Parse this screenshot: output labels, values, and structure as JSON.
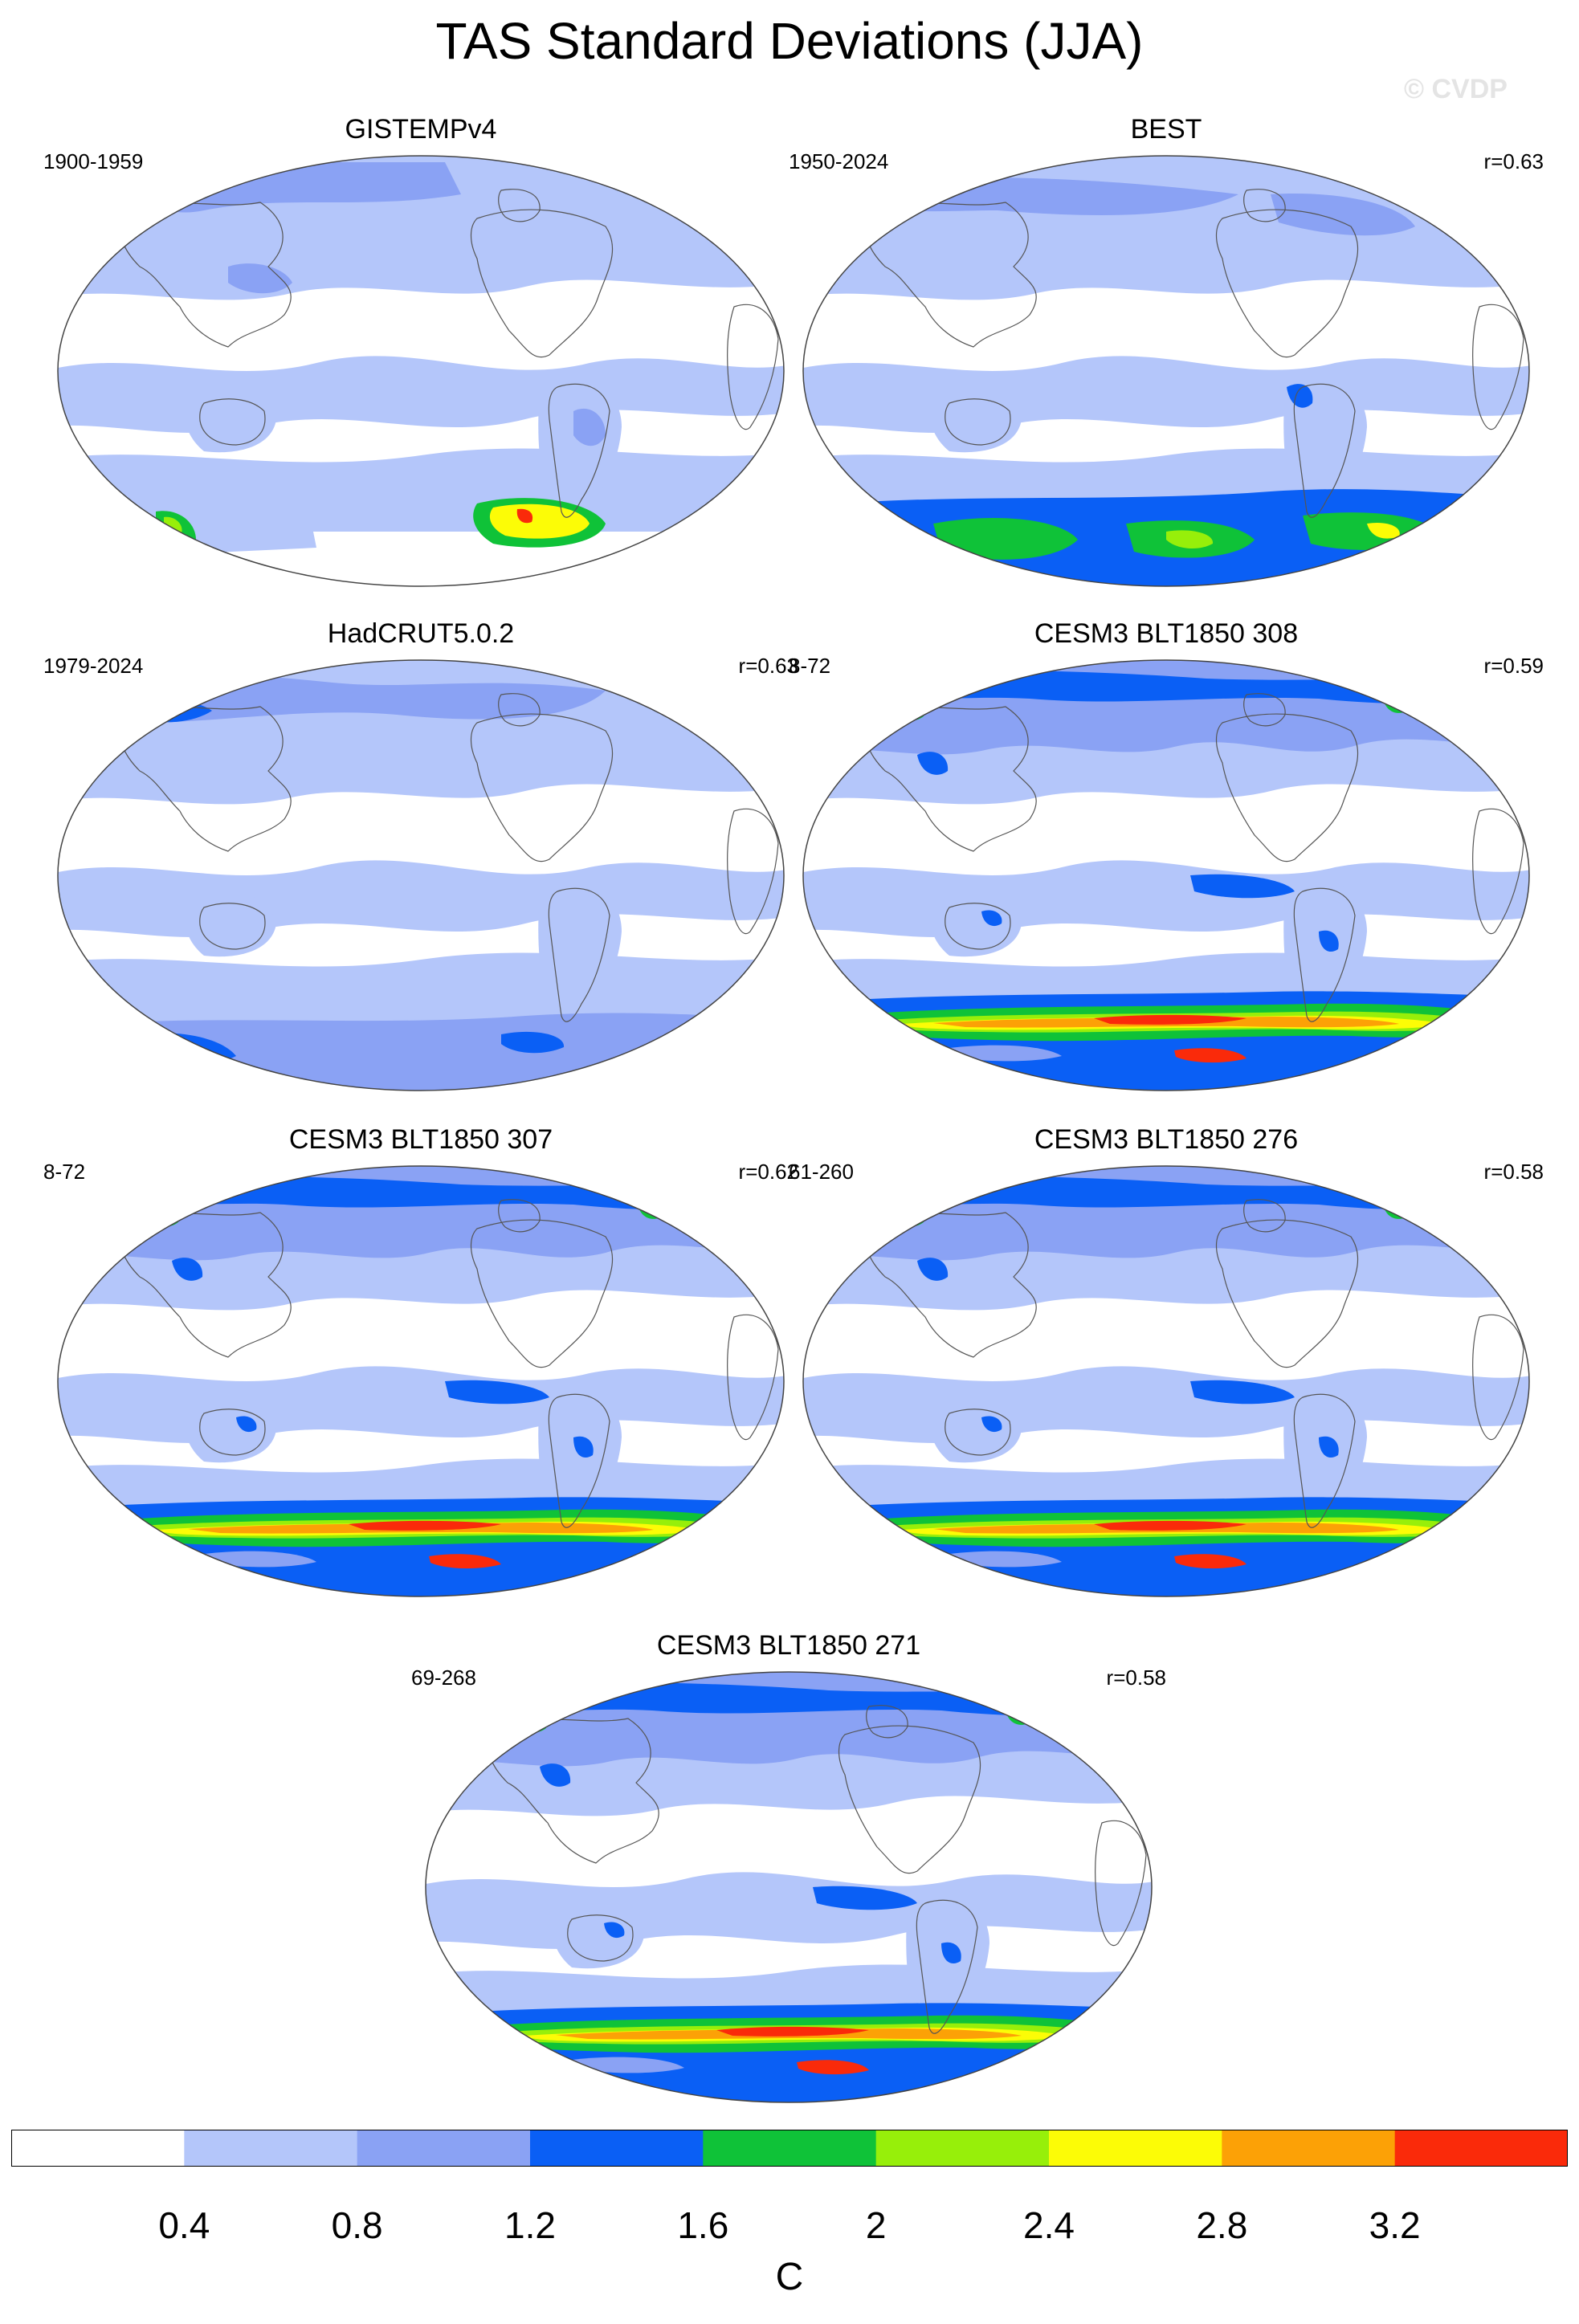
{
  "title": "TAS Standard Deviations (JJA)",
  "watermark": "© CVDP",
  "panels": [
    {
      "title": "GISTEMPv4",
      "period": "1900-1959",
      "r": "",
      "style": "gistemp"
    },
    {
      "title": "BEST",
      "period": "1950-2024",
      "r": "r=0.63",
      "style": "best"
    },
    {
      "title": "HadCRUT5.0.2",
      "period": "1979-2024",
      "r": "r=0.63",
      "style": "hadcrut"
    },
    {
      "title": "CESM3 BLT1850 308",
      "period": "8-72",
      "r": "r=0.59",
      "style": "model"
    },
    {
      "title": "CESM3 BLT1850 307",
      "period": "8-72",
      "r": "r=0.62",
      "style": "model"
    },
    {
      "title": "CESM3 BLT1850 276",
      "period": "61-260",
      "r": "r=0.58",
      "style": "model"
    },
    {
      "title": "CESM3 BLT1850 271",
      "period": "69-268",
      "r": "r=0.58",
      "style": "model"
    }
  ],
  "colorbar": {
    "unit": "C",
    "labels": [
      "0.4",
      "0.8",
      "1.2",
      "1.6",
      "2",
      "2.4",
      "2.8",
      "3.2"
    ],
    "colors": [
      "#ffffff",
      "#b4c6fa",
      "#8aa2f4",
      "#0a5ff5",
      "#0fc238",
      "#97ef0a",
      "#fcfc06",
      "#fca106",
      "#fa2a0a"
    ]
  }
}
